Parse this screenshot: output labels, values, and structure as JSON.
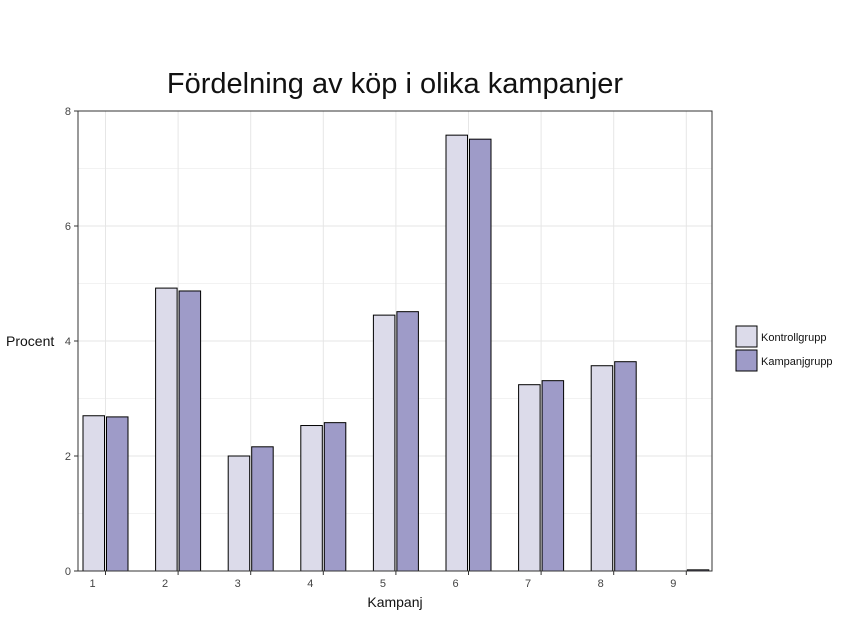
{
  "chart_data": {
    "type": "bar",
    "title": "Fördelning av köp i olika kampanjer",
    "xlabel": "Kampanj",
    "ylabel": "Procent",
    "categories": [
      "1",
      "2",
      "3",
      "4",
      "5",
      "6",
      "7",
      "8",
      "9"
    ],
    "series": [
      {
        "name": "Kontrollgrupp",
        "color": "#dcdbea",
        "values": [
          2.7,
          4.92,
          2.0,
          2.53,
          4.45,
          7.58,
          3.24,
          3.57,
          0.0
        ]
      },
      {
        "name": "Kampanjgrupp",
        "color": "#9e9bc8",
        "values": [
          2.68,
          4.87,
          2.16,
          2.58,
          4.51,
          7.51,
          3.31,
          3.64,
          0.02
        ]
      }
    ],
    "ylim": [
      0,
      8
    ],
    "yticks": [
      0,
      2,
      4,
      6,
      8
    ],
    "grid": true,
    "legend_position": "right"
  }
}
